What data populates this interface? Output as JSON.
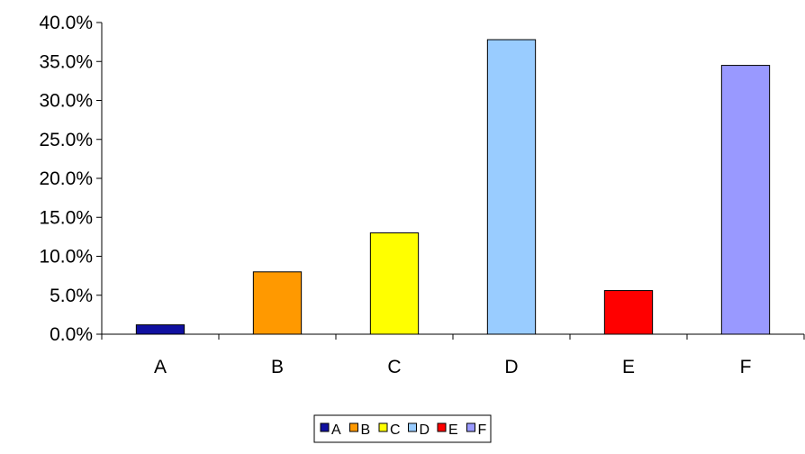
{
  "chart_data": {
    "type": "bar",
    "categories": [
      "A",
      "B",
      "C",
      "D",
      "E",
      "F"
    ],
    "values": [
      1.2,
      8.0,
      13.0,
      37.8,
      5.6,
      34.5
    ],
    "colors": [
      "#1010A0",
      "#FF9900",
      "#FFFF00",
      "#99CCFF",
      "#FF0000",
      "#9999FF"
    ],
    "ylim": [
      0,
      40
    ],
    "yticks": [
      0,
      5,
      10,
      15,
      20,
      25,
      30,
      35,
      40
    ],
    "ytick_labels": [
      "0.0%",
      "5.0%",
      "10.0%",
      "15.0%",
      "20.0%",
      "25.0%",
      "30.0%",
      "35.0%",
      "40.0%"
    ],
    "grid": false,
    "legend": {
      "position": "bottom",
      "entries": [
        "A",
        "B",
        "C",
        "D",
        "E",
        "F"
      ]
    }
  }
}
